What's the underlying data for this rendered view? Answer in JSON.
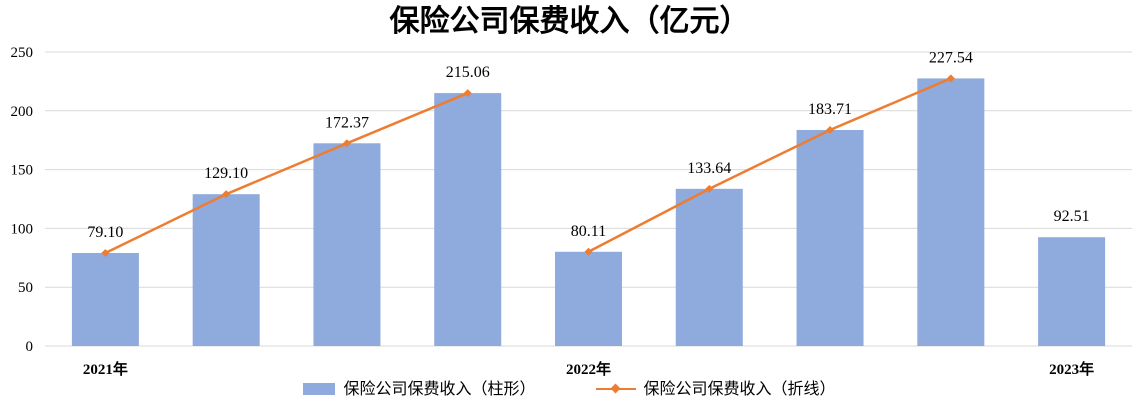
{
  "chart_data": {
    "type": "bar",
    "title": "保险公司保费收入（亿元）",
    "categories": [
      "",
      "",
      "",
      "",
      "",
      "",
      "",
      "",
      ""
    ],
    "year_labels": [
      {
        "label": "2021年",
        "index": 0
      },
      {
        "label": "2022年",
        "index": 4
      },
      {
        "label": "2023年",
        "index": 8
      }
    ],
    "ylim": [
      0,
      250
    ],
    "yticks": [
      0,
      50,
      100,
      150,
      200,
      250
    ],
    "ytick_labels": [
      "0",
      "50",
      "100",
      "150",
      "200",
      "250"
    ],
    "grid": true,
    "legend_position": "bottom",
    "series": [
      {
        "name": "保险公司保费收入（柱形）",
        "type": "bar",
        "color": "#8faadc",
        "values": [
          79.1,
          129.1,
          172.37,
          215.06,
          80.11,
          133.64,
          183.71,
          227.54,
          92.51
        ],
        "labels": [
          "79.10",
          "129.10",
          "172.37",
          "215.06",
          "80.11",
          "133.64",
          "183.71",
          "227.54",
          "92.51"
        ]
      },
      {
        "name": "保险公司保费收入（折线）",
        "type": "line",
        "color": "#ed7d31",
        "segments": [
          {
            "indices": [
              0,
              1,
              2,
              3
            ],
            "values": [
              79.1,
              129.1,
              172.37,
              215.06
            ]
          },
          {
            "indices": [
              4,
              5,
              6,
              7
            ],
            "values": [
              80.11,
              133.64,
              183.71,
              227.54
            ]
          }
        ]
      }
    ]
  }
}
